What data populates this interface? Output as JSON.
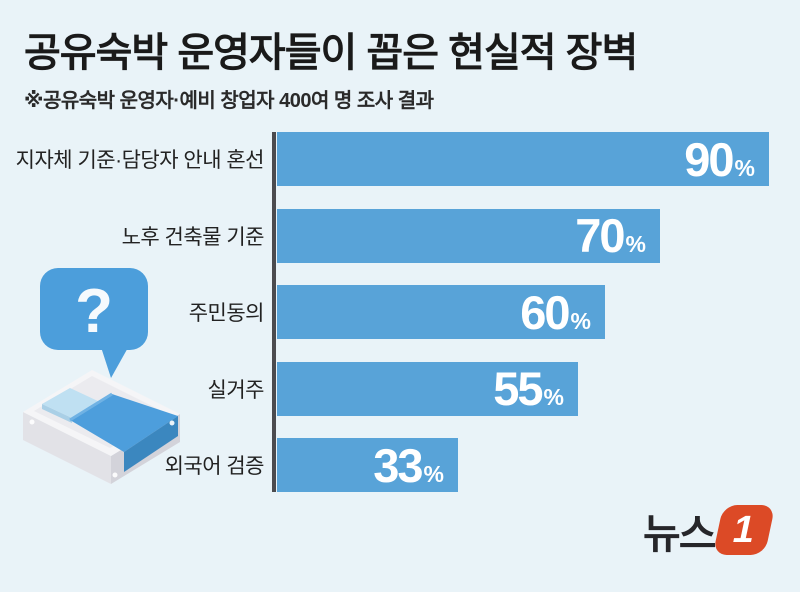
{
  "header": {
    "title": "공유숙박 운영자들이 꼽은 현실적 장벽",
    "subtitle": "※공유숙박 운영자·예비 창업자 400여 명 조사 결과"
  },
  "chart_data": {
    "type": "bar",
    "orientation": "horizontal",
    "categories": [
      "지자체 기준·담당자 안내 혼선",
      "노후 건축물 기준",
      "주민동의",
      "실거주",
      "외국어 검증"
    ],
    "values": [
      90,
      70,
      60,
      55,
      33
    ],
    "unit": "%",
    "xlim": [
      0,
      100
    ],
    "grid": false,
    "legend": false,
    "bar_color": "#58a3d8",
    "axis_line_color": "#4b4b4f",
    "value_label_color": "#ffffff"
  },
  "illustration": {
    "name": "bed-with-question-speech-bubble",
    "question_mark": "?",
    "bubble_color": "#4c9edb",
    "blanket_color": "#4d9edc",
    "pillow_color": "#bfe0f2",
    "frame_color": "#f5f5f7"
  },
  "logo": {
    "text": "뉴스",
    "one": "1",
    "one_bg": "#dc4a26",
    "text_color": "#26262a"
  },
  "colors": {
    "background": "#e9f3f8"
  }
}
